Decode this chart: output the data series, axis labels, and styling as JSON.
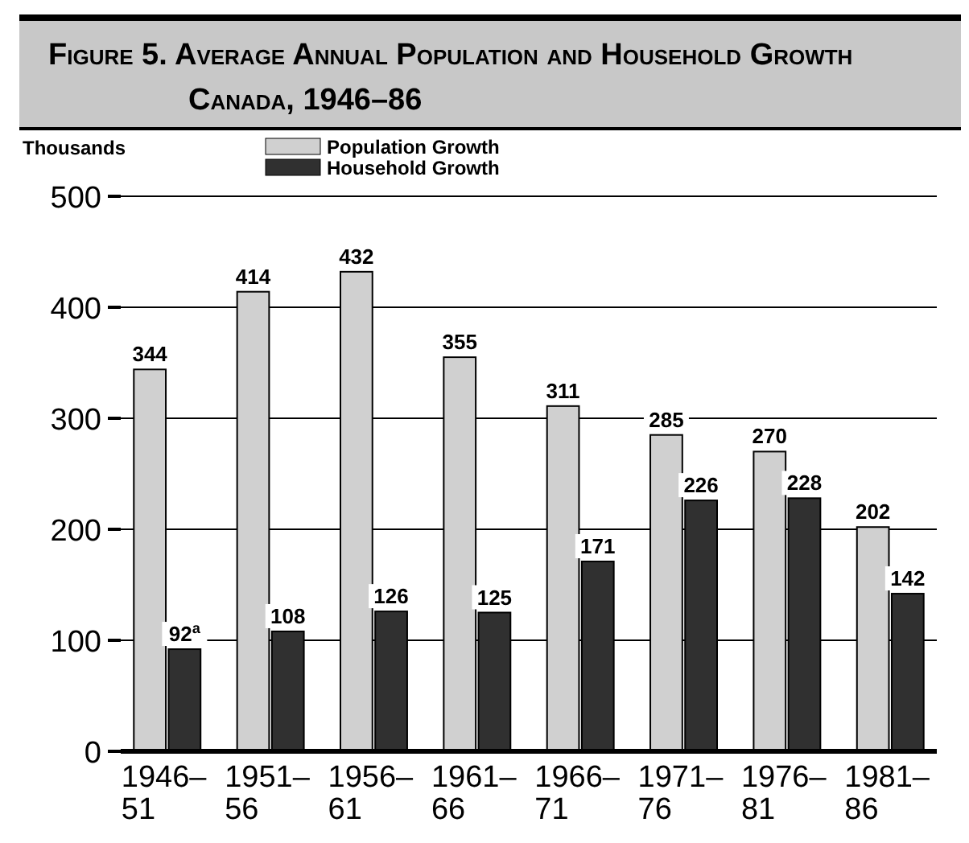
{
  "chart_data": {
    "type": "bar",
    "title": "Figure 5. Average Annual Population and Household Growth",
    "subtitle": "Canada, 1946–86",
    "ylabel": "Thousands",
    "categories": [
      "1946–51",
      "1951–56",
      "1956–61",
      "1961–66",
      "1966–71",
      "1971–76",
      "1976–81",
      "1981–86"
    ],
    "series": [
      {
        "name": "Population Growth",
        "color": "#d0d0d0",
        "values": [
          344,
          414,
          432,
          355,
          311,
          285,
          270,
          202
        ],
        "value_labels": [
          "344",
          "414",
          "432",
          "355",
          "311",
          "285",
          "270",
          "202"
        ]
      },
      {
        "name": "Household Growth",
        "color": "#303030",
        "values": [
          92,
          108,
          126,
          125,
          171,
          226,
          228,
          142
        ],
        "value_labels": [
          "92$^{a}$",
          "108",
          "126",
          "125",
          "171",
          "226",
          "228",
          "142"
        ]
      }
    ],
    "ylim": [
      0,
      500
    ],
    "yticks": [
      0,
      100,
      200,
      300,
      400,
      500
    ],
    "grid": "y",
    "legend": "top"
  }
}
